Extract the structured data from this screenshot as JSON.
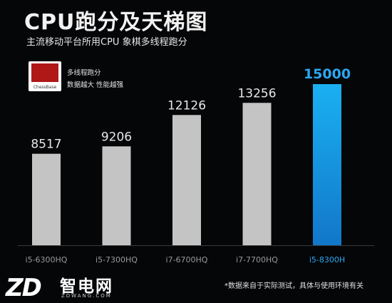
{
  "header": {
    "title": "CPU跑分及天梯图",
    "subtitle": "主流移动平台所用CPU 象棋多线程跑分"
  },
  "legend": {
    "brand": "ChessBase",
    "line1": "多线程跑分",
    "line2": "数据越大 性能越强"
  },
  "footer": {
    "note": "*数据来自于实际测试，具体与使用环境有关"
  },
  "logo": {
    "mark": "ZD",
    "name": "智电网",
    "url": "ZDWANG.COM"
  },
  "colors": {
    "bar_default": "#c4c4c4",
    "bar_highlight": "#1a9fe6",
    "highlight_label": "#2aa8f2",
    "label_default": "#e8e8e8",
    "category_label": "#9a9a9a",
    "baseline": "#3a3a3a"
  },
  "chart_data": {
    "type": "bar",
    "categories": [
      "i5-6300HQ",
      "i5-7300HQ",
      "i7-6700HQ",
      "i7-7700HQ",
      "i5-8300H"
    ],
    "values": [
      8517,
      9206,
      12126,
      13256,
      15000
    ],
    "highlight_index": 4,
    "ylim": [
      0,
      15000
    ],
    "grid": false
  }
}
